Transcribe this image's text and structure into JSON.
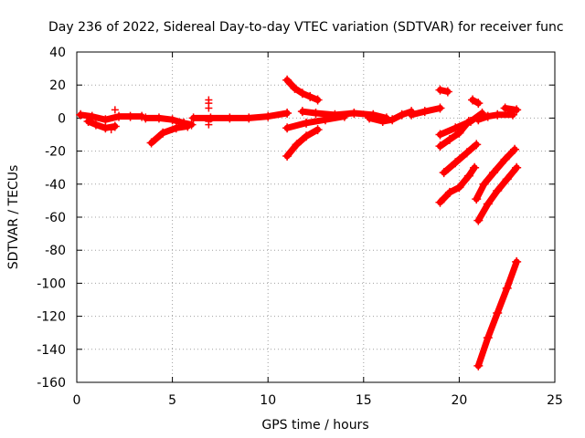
{
  "chart_data": {
    "type": "scatter",
    "title": "Day 236 of 2022, Sidereal Day-to-day VTEC variation (SDTVAR) for receiver func",
    "xlabel": "GPS time / hours",
    "ylabel": "SDTVAR / TECUs",
    "xlim": [
      0,
      25
    ],
    "ylim": [
      -160,
      40
    ],
    "xticks": [
      0,
      5,
      10,
      15,
      20,
      25
    ],
    "yticks": [
      40,
      20,
      0,
      -20,
      -40,
      -60,
      -80,
      -100,
      -120,
      -140,
      -160
    ],
    "xtick_labels": [
      "0",
      "5",
      "10",
      "15",
      "20",
      "25"
    ],
    "ytick_labels": [
      "40",
      "20",
      "0",
      "-20",
      "-40",
      "-60",
      "-80",
      "-100",
      "-120",
      "-140",
      "-160"
    ],
    "grid": true,
    "marker": "+",
    "color": "#ff0000",
    "series": [
      {
        "name": "s01",
        "x": [
          0.2,
          0.8,
          1.5,
          2.2,
          2.8,
          3.4
        ],
        "y": [
          2,
          1,
          -1,
          1,
          1,
          1
        ]
      },
      {
        "name": "s02",
        "x": [
          0.6,
          1.0,
          1.5,
          2.0
        ],
        "y": [
          -2,
          -4,
          -6,
          -5
        ]
      },
      {
        "name": "s03",
        "x": [
          3.6,
          4.3,
          5.0,
          5.6,
          6.0
        ],
        "y": [
          0,
          0,
          -1,
          -3,
          -4
        ]
      },
      {
        "name": "s04",
        "x": [
          3.9,
          4.5,
          5.2,
          5.8
        ],
        "y": [
          -15,
          -9,
          -6,
          -5
        ]
      },
      {
        "name": "s05",
        "x": [
          6.1,
          7.0,
          8.0,
          9.0,
          10.0,
          11.0
        ],
        "y": [
          0,
          0,
          0,
          0,
          1,
          3
        ]
      },
      {
        "name": "s06",
        "x": [
          11.0,
          11.4,
          11.8,
          12.2,
          12.6
        ],
        "y": [
          23,
          18,
          15,
          13,
          11
        ]
      },
      {
        "name": "s07",
        "x": [
          11.0,
          11.5,
          12.0,
          12.6
        ],
        "y": [
          -23,
          -16,
          -11,
          -7
        ]
      },
      {
        "name": "s08",
        "x": [
          11.0,
          12.0,
          13.0,
          14.0
        ],
        "y": [
          -6,
          -3,
          -1,
          1
        ]
      },
      {
        "name": "s09",
        "x": [
          11.8,
          12.5,
          13.5,
          14.5,
          15.5,
          16.2
        ],
        "y": [
          4,
          3,
          2,
          3,
          2,
          0
        ]
      },
      {
        "name": "s10",
        "x": [
          15.3,
          16.0,
          16.5,
          17.0,
          17.5
        ],
        "y": [
          0,
          -2,
          -1,
          2,
          4
        ]
      },
      {
        "name": "s11",
        "x": [
          17.5,
          18.2,
          19.0
        ],
        "y": [
          2,
          4,
          6
        ]
      },
      {
        "name": "s12",
        "x": [
          19.0,
          19.4
        ],
        "y": [
          17,
          16
        ]
      },
      {
        "name": "s13",
        "x": [
          19.0,
          19.5,
          20.0,
          20.5
        ],
        "y": [
          -17,
          -13,
          -9,
          -2
        ]
      },
      {
        "name": "s14",
        "x": [
          19.0,
          19.8,
          20.6,
          21.2
        ],
        "y": [
          -10,
          -6,
          -2,
          3
        ]
      },
      {
        "name": "s15",
        "x": [
          19.0,
          19.5,
          20.0,
          20.5,
          20.8
        ],
        "y": [
          -51,
          -45,
          -42,
          -35,
          -30
        ]
      },
      {
        "name": "s16",
        "x": [
          19.2,
          19.8,
          20.4,
          20.9
        ],
        "y": [
          -33,
          -27,
          -21,
          -16
        ]
      },
      {
        "name": "s17",
        "x": [
          20.7,
          21.0
        ],
        "y": [
          11,
          9
        ]
      },
      {
        "name": "s18",
        "x": [
          21.0,
          21.5,
          22.0,
          22.8
        ],
        "y": [
          -1,
          1,
          2,
          2
        ]
      },
      {
        "name": "s19",
        "x": [
          22.4,
          23.0
        ],
        "y": [
          6,
          5
        ]
      },
      {
        "name": "s20",
        "x": [
          20.9,
          21.3,
          21.8,
          22.4,
          22.9
        ],
        "y": [
          -49,
          -40,
          -33,
          -25,
          -19
        ]
      },
      {
        "name": "s21",
        "x": [
          21.0,
          21.5,
          22.0,
          22.5,
          23.0
        ],
        "y": [
          -62,
          -52,
          -44,
          -37,
          -30
        ]
      },
      {
        "name": "s22",
        "x": [
          21.0,
          21.5,
          22.0,
          22.5,
          23.0
        ],
        "y": [
          -150,
          -133,
          -118,
          -103,
          -87
        ]
      }
    ],
    "points": [
      {
        "x": 6.9,
        "y": 11
      },
      {
        "x": 6.9,
        "y": 9
      },
      {
        "x": 6.9,
        "y": 6
      },
      {
        "x": 6.9,
        "y": -2
      },
      {
        "x": 6.9,
        "y": -4
      },
      {
        "x": 2.0,
        "y": 5
      },
      {
        "x": 1.8,
        "y": -7
      }
    ]
  }
}
